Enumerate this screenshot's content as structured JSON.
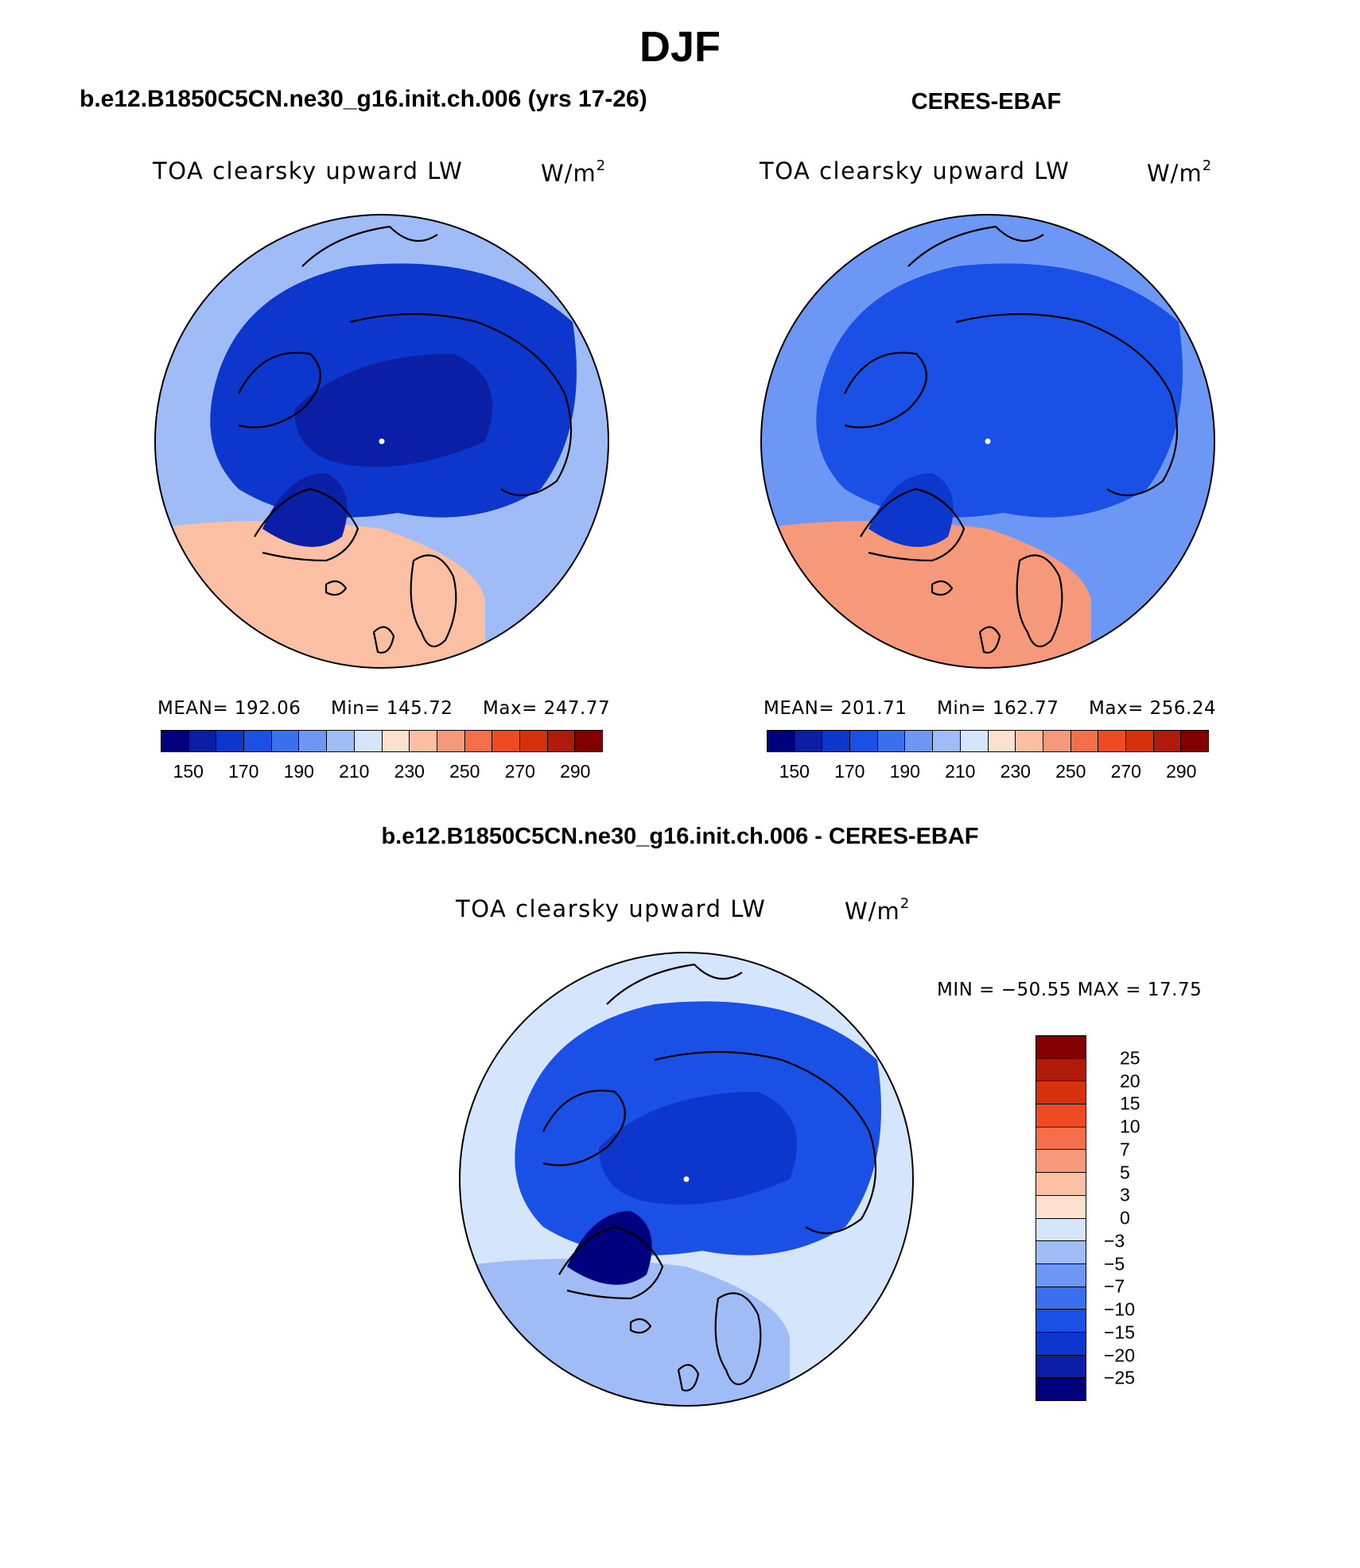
{
  "figure": {
    "title": "DJF"
  },
  "panels": {
    "model": {
      "header": "b.e12.B1850C5CN.ne30_g16.init.ch.006 (yrs 17-26)",
      "variable": "TOA clearsky upward LW",
      "units": "W/m",
      "units_exp": "2",
      "mean_label": "MEAN= 192.06",
      "min_label": "Min= 145.72",
      "max_label": "Max= 247.77"
    },
    "obs": {
      "header": "CERES-EBAF",
      "variable": "TOA clearsky upward LW",
      "units": "W/m",
      "units_exp": "2",
      "mean_label": "MEAN= 201.71",
      "min_label": "Min= 162.77",
      "max_label": "Max= 256.24"
    },
    "diff": {
      "header": "b.e12.B1850C5CN.ne30_g16.init.ch.006 - CERES-EBAF",
      "variable": "TOA clearsky upward LW",
      "units": "W/m",
      "units_exp": "2",
      "minmax_label": "MIN = −50.55 MAX =  17.75"
    }
  },
  "colorbars": {
    "field": {
      "colors": [
        "#00007f",
        "#0a1fa5",
        "#0d36cc",
        "#1a50e6",
        "#3a6fee",
        "#6d97f5",
        "#9fbcf6",
        "#d5e5fb",
        "#fde1cf",
        "#fbc0a4",
        "#f6997a",
        "#f46e49",
        "#ef4a22",
        "#d7300c",
        "#b01a0a",
        "#820000"
      ],
      "tick_labels": [
        "150",
        "170",
        "190",
        "210",
        "230",
        "250",
        "270",
        "290"
      ]
    },
    "diff": {
      "colors_top_to_bottom": [
        "#820000",
        "#b01a0a",
        "#d7300c",
        "#ef4a22",
        "#f46e49",
        "#f6997a",
        "#fbc0a4",
        "#fde1cf",
        "#d5e5fb",
        "#9fbcf6",
        "#6d97f5",
        "#3a6fee",
        "#1a50e6",
        "#0d36cc",
        "#0a1fa5",
        "#00007f"
      ],
      "tick_labels": [
        "25",
        "20",
        "15",
        "10",
        "7",
        "5",
        "3",
        "0",
        "−3",
        "−5",
        "−7",
        "−10",
        "−15",
        "−20",
        "−25"
      ]
    }
  },
  "maps": {
    "projection": "north polar stereographic",
    "model_palette": {
      "ocean_outer": "#9fbcf6",
      "arctic": "#0d36cc",
      "core": "#0a1fa5",
      "greenland": "#0a1fa5",
      "atlantic": "#fbc0a4",
      "pacific": "#f6997a"
    },
    "obs_palette": {
      "ocean_outer": "#6d97f5",
      "arctic": "#1a50e6",
      "core": "#1a50e6",
      "greenland": "#0d36cc",
      "atlantic": "#f6997a",
      "pacific": "#f46e49"
    },
    "diff_palette": {
      "ocean_outer": "#d5e5fb",
      "arctic": "#1a50e6",
      "core": "#0d36cc",
      "greenland": "#00007f",
      "atlantic": "#9fbcf6",
      "pacific": "#6d97f5"
    }
  }
}
